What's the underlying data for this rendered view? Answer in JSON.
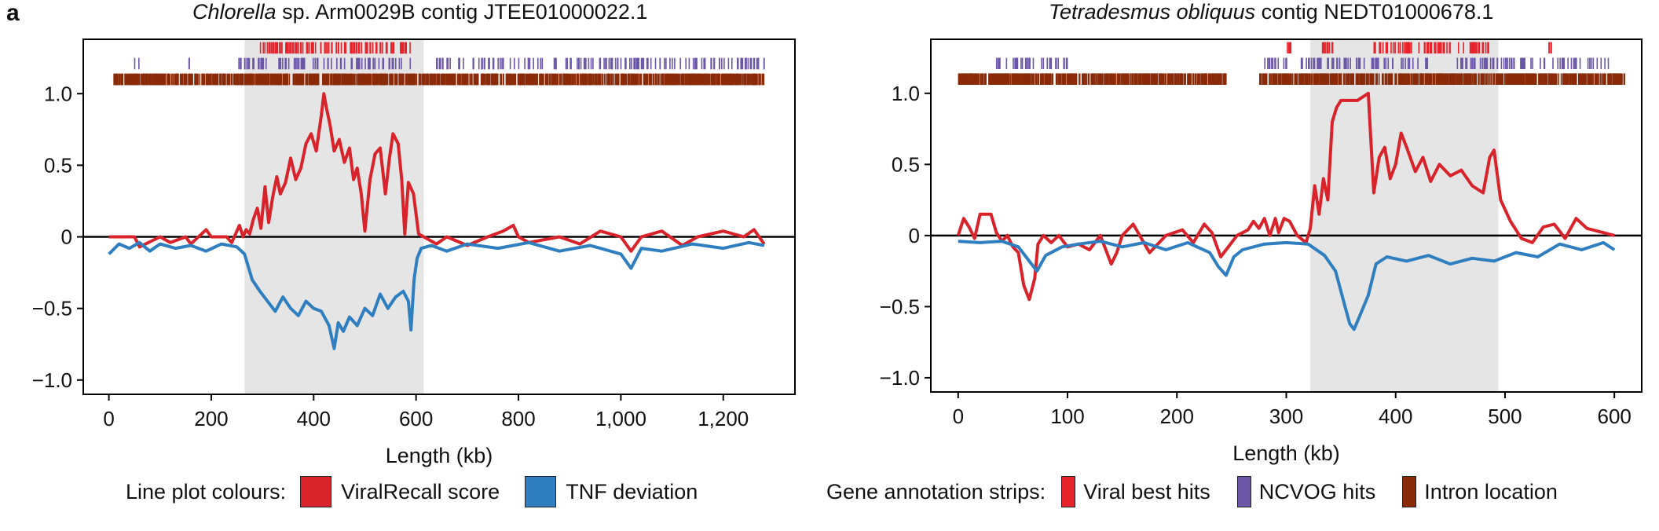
{
  "panel_letter": "a",
  "colors": {
    "viral_score": "#d9232a",
    "tnf": "#2f7fc0",
    "viral_hits": "#e8222b",
    "ncvog": "#6b56a8",
    "intron": "#8b2a08",
    "shade": "#e5e5e5"
  },
  "legend": {
    "line_title": "Line plot colours:",
    "line_items": [
      "ViralRecall score",
      "TNF deviation"
    ],
    "strip_title": "Gene annotation strips:",
    "strip_items": [
      "Viral best hits",
      "NCVOG hits",
      "Intron location"
    ]
  },
  "chart_data": [
    {
      "type": "line",
      "title_italic": "Chlorella",
      "title_rest": " sp. Arm0029B contig JTEE01000022.1",
      "xlabel": "Length (kb)",
      "xlim": [
        -50,
        1340
      ],
      "ylim": [
        -1.1,
        1.38
      ],
      "xticks": [
        0,
        200,
        400,
        600,
        800,
        1000,
        1200
      ],
      "xtick_labels": [
        "0",
        "200",
        "400",
        "600",
        "800",
        "1,000",
        "1,200"
      ],
      "yticks": [
        1.0,
        0.5,
        0,
        -0.5,
        -1.0
      ],
      "ytick_labels": [
        "1.0",
        "0.5",
        "0",
        "−0.5",
        "−1.0"
      ],
      "shaded_region": [
        265,
        615
      ],
      "series": [
        {
          "key": "viral_score",
          "x": [
            0,
            50,
            60,
            100,
            120,
            150,
            160,
            190,
            200,
            230,
            240,
            255,
            262,
            268,
            275,
            282,
            290,
            297,
            305,
            312,
            320,
            328,
            335,
            345,
            355,
            365,
            375,
            385,
            395,
            405,
            415,
            420,
            425,
            432,
            440,
            450,
            460,
            470,
            478,
            485,
            493,
            500,
            510,
            520,
            530,
            540,
            548,
            555,
            565,
            572,
            578,
            585,
            595,
            605,
            615,
            640,
            660,
            700,
            740,
            770,
            790,
            800,
            820,
            880,
            920,
            960,
            1000,
            1020,
            1040,
            1080,
            1120,
            1150,
            1200,
            1240,
            1260,
            1280
          ],
          "y": [
            0,
            0,
            -0.07,
            0,
            -0.04,
            0,
            -0.05,
            0.05,
            0,
            0,
            -0.04,
            0.08,
            0,
            0.05,
            0.02,
            0.12,
            0.2,
            0.06,
            0.35,
            0.1,
            0.28,
            0.42,
            0.3,
            0.38,
            0.55,
            0.4,
            0.48,
            0.65,
            0.72,
            0.6,
            0.85,
            1.0,
            0.9,
            0.78,
            0.6,
            0.68,
            0.52,
            0.62,
            0.4,
            0.48,
            0.3,
            0.04,
            0.4,
            0.58,
            0.62,
            0.3,
            0.55,
            0.72,
            0.65,
            0.4,
            0.02,
            0.38,
            0.3,
            0.02,
            0,
            -0.05,
            0,
            -0.06,
            0,
            0.04,
            0.08,
            0,
            -0.04,
            0,
            -0.05,
            0.04,
            0,
            -0.1,
            0,
            0.04,
            -0.06,
            0,
            0.04,
            0,
            0.05,
            -0.05
          ]
        },
        {
          "key": "tnf",
          "x": [
            0,
            20,
            40,
            60,
            80,
            100,
            130,
            160,
            190,
            220,
            250,
            265,
            280,
            295,
            310,
            325,
            340,
            355,
            370,
            385,
            400,
            415,
            430,
            440,
            448,
            458,
            470,
            485,
            500,
            515,
            530,
            545,
            560,
            575,
            585,
            590,
            596,
            602,
            610,
            630,
            660,
            700,
            760,
            820,
            880,
            940,
            1000,
            1020,
            1040,
            1080,
            1140,
            1200,
            1250,
            1280
          ],
          "y": [
            -0.12,
            -0.05,
            -0.08,
            -0.04,
            -0.1,
            -0.05,
            -0.08,
            -0.06,
            -0.1,
            -0.05,
            -0.07,
            -0.12,
            -0.3,
            -0.38,
            -0.45,
            -0.52,
            -0.42,
            -0.5,
            -0.55,
            -0.45,
            -0.5,
            -0.52,
            -0.62,
            -0.78,
            -0.6,
            -0.66,
            -0.56,
            -0.62,
            -0.5,
            -0.55,
            -0.4,
            -0.5,
            -0.42,
            -0.38,
            -0.45,
            -0.65,
            -0.3,
            -0.15,
            -0.08,
            -0.06,
            -0.1,
            -0.05,
            -0.08,
            -0.04,
            -0.1,
            -0.06,
            -0.12,
            -0.22,
            -0.08,
            -0.1,
            -0.05,
            -0.08,
            -0.04,
            -0.06
          ]
        }
      ]
    },
    {
      "type": "line",
      "title_italic": "Tetradesmus obliquus",
      "title_rest": " contig NEDT01000678.1",
      "xlabel": "Length (kb)",
      "xlim": [
        -25,
        625
      ],
      "ylim": [
        -1.1,
        1.38
      ],
      "xticks": [
        0,
        100,
        200,
        300,
        400,
        500,
        600
      ],
      "xtick_labels": [
        "0",
        "100",
        "200",
        "300",
        "400",
        "500",
        "600"
      ],
      "yticks": [
        1.0,
        0.5,
        0,
        -0.5,
        -1.0
      ],
      "ytick_labels": [
        "1.0",
        "0.5",
        "0",
        "−0.5",
        "−1.0"
      ],
      "shaded_region": [
        322,
        494
      ],
      "series": [
        {
          "key": "viral_score",
          "x": [
            0,
            5,
            10,
            15,
            20,
            25,
            30,
            35,
            40,
            45,
            50,
            55,
            60,
            65,
            70,
            73,
            78,
            85,
            92,
            100,
            110,
            120,
            130,
            140,
            145,
            150,
            160,
            175,
            190,
            205,
            215,
            225,
            232,
            240,
            255,
            265,
            270,
            275,
            280,
            285,
            290,
            293,
            298,
            303,
            310,
            318,
            322,
            326,
            330,
            334,
            338,
            342,
            346,
            350,
            356,
            365,
            375,
            380,
            385,
            390,
            395,
            400,
            405,
            410,
            418,
            425,
            432,
            440,
            450,
            460,
            470,
            480,
            486,
            490,
            496,
            505,
            515,
            525,
            535,
            545,
            555,
            565,
            575,
            600
          ],
          "y": [
            0,
            0.12,
            0.06,
            -0.02,
            0.15,
            0.15,
            0.15,
            0.02,
            -0.04,
            0,
            -0.08,
            -0.12,
            -0.35,
            -0.45,
            -0.3,
            -0.06,
            0,
            -0.05,
            0,
            -0.08,
            -0.06,
            -0.1,
            0,
            -0.2,
            -0.12,
            0,
            0.08,
            -0.12,
            0,
            0.04,
            -0.05,
            0.08,
            0.02,
            -0.15,
            0,
            0.04,
            0.1,
            0.05,
            0.12,
            0.0,
            0.12,
            0.02,
            0.12,
            0.1,
            0.0,
            -0.05,
            0.05,
            0.35,
            0.15,
            0.4,
            0.25,
            0.8,
            0.9,
            0.95,
            0.95,
            0.95,
            1.0,
            0.3,
            0.55,
            0.62,
            0.4,
            0.5,
            0.72,
            0.62,
            0.45,
            0.55,
            0.38,
            0.5,
            0.42,
            0.46,
            0.35,
            0.3,
            0.55,
            0.6,
            0.25,
            0.1,
            -0.02,
            -0.05,
            0.06,
            0.08,
            -0.02,
            0.12,
            0.05,
            0.0
          ]
        },
        {
          "key": "tnf",
          "x": [
            0,
            20,
            40,
            55,
            65,
            72,
            80,
            95,
            110,
            130,
            150,
            170,
            190,
            210,
            230,
            238,
            245,
            252,
            260,
            280,
            300,
            320,
            335,
            345,
            352,
            358,
            362,
            368,
            375,
            382,
            392,
            410,
            430,
            450,
            470,
            490,
            510,
            530,
            550,
            570,
            590,
            600
          ],
          "y": [
            -0.04,
            -0.05,
            -0.04,
            -0.08,
            -0.18,
            -0.25,
            -0.14,
            -0.08,
            -0.06,
            -0.04,
            -0.08,
            -0.05,
            -0.1,
            -0.05,
            -0.12,
            -0.22,
            -0.28,
            -0.15,
            -0.1,
            -0.06,
            -0.05,
            -0.06,
            -0.14,
            -0.25,
            -0.45,
            -0.62,
            -0.66,
            -0.55,
            -0.42,
            -0.2,
            -0.15,
            -0.18,
            -0.14,
            -0.2,
            -0.16,
            -0.18,
            -0.12,
            -0.15,
            -0.06,
            -0.1,
            -0.05,
            -0.1
          ]
        }
      ],
      "strip_gene_ranges": {
        "intron": [
          [
            0,
            245
          ],
          [
            275,
            610
          ]
        ],
        "ncvog": [
          [
            28,
            100
          ],
          [
            280,
            430
          ],
          [
            455,
            600
          ]
        ],
        "viral": [
          [
            300,
            305
          ],
          [
            330,
            345
          ],
          [
            380,
            485
          ],
          [
            540,
            545
          ]
        ]
      }
    }
  ],
  "strips_panel1": {
    "intron": [
      [
        10,
        1280
      ]
    ],
    "ncvog": [
      [
        50,
        60
      ],
      [
        150,
        160
      ],
      [
        250,
        600
      ],
      [
        640,
        1280
      ]
    ],
    "viral": [
      [
        295,
        590
      ]
    ]
  }
}
